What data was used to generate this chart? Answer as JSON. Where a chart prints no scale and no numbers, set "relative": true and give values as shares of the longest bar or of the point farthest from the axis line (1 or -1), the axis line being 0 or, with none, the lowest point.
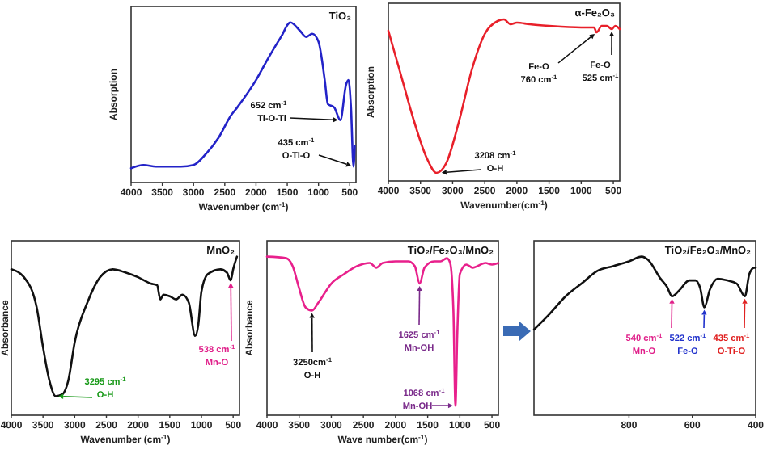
{
  "chart_data": [
    {
      "type": "line",
      "title": "TiO₂",
      "xlabel": "Wavenumber (cm$^{-1}$)",
      "ylabel": "Absorption",
      "relative": true,
      "tick_labels": "x",
      "xlim": [
        4000,
        400
      ],
      "xticks": [
        4000,
        3500,
        3000,
        2500,
        2000,
        1500,
        1000,
        500
      ],
      "series": [
        {
          "color": "#2323c8",
          "x": [
            4000,
            3800,
            3600,
            3400,
            3200,
            3000,
            2800,
            2600,
            2400,
            2300,
            2000,
            1800,
            1600,
            1450,
            1300,
            1200,
            1100,
            1000,
            900,
            850,
            750,
            650,
            560,
            520,
            480,
            440,
            420
          ],
          "values": [
            0.09,
            0.11,
            0.1,
            0.1,
            0.1,
            0.11,
            0.18,
            0.28,
            0.42,
            0.47,
            0.64,
            0.78,
            0.91,
            1.0,
            0.95,
            0.91,
            0.93,
            0.88,
            0.64,
            0.49,
            0.47,
            0.39,
            0.61,
            0.64,
            0.47,
            0.1,
            0.23
          ]
        }
      ],
      "annotations": [
        "652 cm$^{-1}$",
        {
          "text": "Ti-O-Ti",
          "x": 652,
          "y": 0.39
        },
        "435 cm$^{-1}$",
        {
          "text": "O-Ti-O",
          "x": 440,
          "y": 0.1
        }
      ]
    },
    {
      "type": "line",
      "title": "α-Fe₂O₃",
      "xlabel": "Wavenumber(cm$^{-1}$)",
      "ylabel": "Absorption",
      "relative": true,
      "tick_labels": "x",
      "xlim": [
        4000,
        400
      ],
      "xticks": [
        4000,
        3500,
        3000,
        2500,
        2000,
        1500,
        1000,
        500
      ],
      "series": [
        {
          "color": "#e8202a",
          "x": [
            4000,
            3800,
            3600,
            3400,
            3250,
            3100,
            2900,
            2700,
            2500,
            2300,
            2200,
            2100,
            2000,
            1800,
            1500,
            1000,
            800,
            760,
            680,
            600,
            525,
            470,
            400
          ],
          "values": [
            0.93,
            0.65,
            0.37,
            0.14,
            0.05,
            0.11,
            0.37,
            0.69,
            0.91,
            0.99,
            1.0,
            0.97,
            0.98,
            0.97,
            0.96,
            0.95,
            0.95,
            0.92,
            0.96,
            0.96,
            0.94,
            0.96,
            0.94
          ]
        }
      ],
      "annotations": [
        {
          "text": "Fe-O\n760 cm$^{-1}$",
          "x": 760,
          "y": 0.92
        },
        {
          "text": "Fe-O\n525 cm$^{-1}$",
          "x": 525,
          "y": 0.94
        },
        {
          "text": "3208 cm$^{-1}$",
          "x": 3208,
          "y": 0.05
        },
        "O-H"
      ]
    },
    {
      "type": "line",
      "title": "MnO₂",
      "xlabel": "Wavenumber (cm$^{-1}$)",
      "ylabel": "Absorbance",
      "relative": true,
      "tick_labels": "x",
      "xlim": [
        4000,
        400
      ],
      "xticks": [
        4000,
        3500,
        3000,
        2500,
        2000,
        1500,
        1000,
        500
      ],
      "series": [
        {
          "color": "#111111",
          "x": [
            4000,
            3800,
            3600,
            3500,
            3400,
            3300,
            3200,
            3100,
            3000,
            2800,
            2600,
            2400,
            2200,
            2000,
            1800,
            1700,
            1650,
            1600,
            1500,
            1400,
            1300,
            1200,
            1100,
            1050,
            1000,
            900,
            700,
            600,
            538,
            500,
            440
          ],
          "values": [
            0.92,
            0.87,
            0.68,
            0.43,
            0.22,
            0.12,
            0.13,
            0.22,
            0.46,
            0.71,
            0.87,
            0.92,
            0.9,
            0.87,
            0.83,
            0.82,
            0.73,
            0.76,
            0.75,
            0.73,
            0.76,
            0.71,
            0.5,
            0.57,
            0.78,
            0.89,
            0.92,
            0.9,
            0.85,
            0.92,
            1.0
          ]
        }
      ],
      "annotations": [
        {
          "text": "3295 cm$^{-1}$",
          "x": 3295,
          "y": 0.12
        },
        "O-H",
        {
          "text": "538 cm$^{-1}$",
          "x": 538,
          "y": 0.85
        },
        "Mn-O"
      ]
    },
    {
      "type": "line",
      "title": "TiO₂/Fe₂O₃/MnO₂",
      "xlabel": "Wave number(cm$^{-1}$)",
      "ylabel": "Absorbance",
      "relative": true,
      "tick_labels": "x",
      "xlim": [
        4000,
        400
      ],
      "xticks": [
        4000,
        3500,
        3000,
        2500,
        2000,
        1500,
        1000,
        500
      ],
      "series": [
        {
          "color": "#e8208c",
          "x": [
            4000,
            3700,
            3600,
            3500,
            3400,
            3300,
            3200,
            3000,
            2800,
            2600,
            2400,
            2300,
            2200,
            2000,
            1800,
            1700,
            1625,
            1550,
            1400,
            1300,
            1200,
            1150,
            1100,
            1068,
            1040,
            1000,
            900,
            800,
            600,
            500,
            400
          ],
          "values": [
            1.0,
            0.99,
            0.94,
            0.8,
            0.68,
            0.66,
            0.71,
            0.83,
            0.89,
            0.94,
            0.96,
            0.93,
            0.96,
            0.97,
            0.97,
            0.94,
            0.83,
            0.93,
            0.97,
            0.97,
            0.99,
            0.96,
            0.66,
            0.06,
            0.5,
            0.89,
            0.95,
            0.93,
            0.96,
            0.95,
            0.96
          ]
        }
      ],
      "annotations": [
        {
          "text": "3250cm$^{-1}$",
          "x": 3300,
          "y": 0.66
        },
        "O-H",
        {
          "text": "1625 cm$^{-1}$",
          "x": 1625,
          "y": 0.83
        },
        "Mn-OH",
        {
          "text": "1068 cm$^{-1}$",
          "x": 1068,
          "y": 0.06
        },
        "Mn-OH"
      ]
    },
    {
      "type": "line",
      "title": "TiO₂/Fe₂O₃/MnO₂",
      "relative": true,
      "tick_labels": "x",
      "xlim": [
        1100,
        400
      ],
      "xticks": [
        800,
        600,
        400
      ],
      "series": [
        {
          "color": "#111111",
          "x": [
            1100,
            1050,
            1000,
            950,
            900,
            850,
            800,
            760,
            740,
            700,
            680,
            664,
            640,
            610,
            590,
            575,
            562,
            545,
            520,
            490,
            460,
            434,
            420,
            405,
            400
          ],
          "values": [
            0.54,
            0.64,
            0.75,
            0.83,
            0.91,
            0.94,
            0.97,
            1.0,
            0.98,
            0.86,
            0.81,
            0.75,
            0.79,
            0.85,
            0.85,
            0.8,
            0.68,
            0.79,
            0.86,
            0.85,
            0.83,
            0.75,
            0.89,
            0.93,
            0.93
          ]
        }
      ],
      "annotations": [
        {
          "text": "540 cm$^{-1}$",
          "x": 664,
          "y": 0.75
        },
        "Mn-O",
        {
          "text": "522 cm$^{-1}$",
          "x": 562,
          "y": 0.68
        },
        "Fe-O",
        {
          "text": "435 cm$^{-1}$",
          "x": 434,
          "y": 0.75
        },
        "O-Ti-O"
      ]
    }
  ]
}
